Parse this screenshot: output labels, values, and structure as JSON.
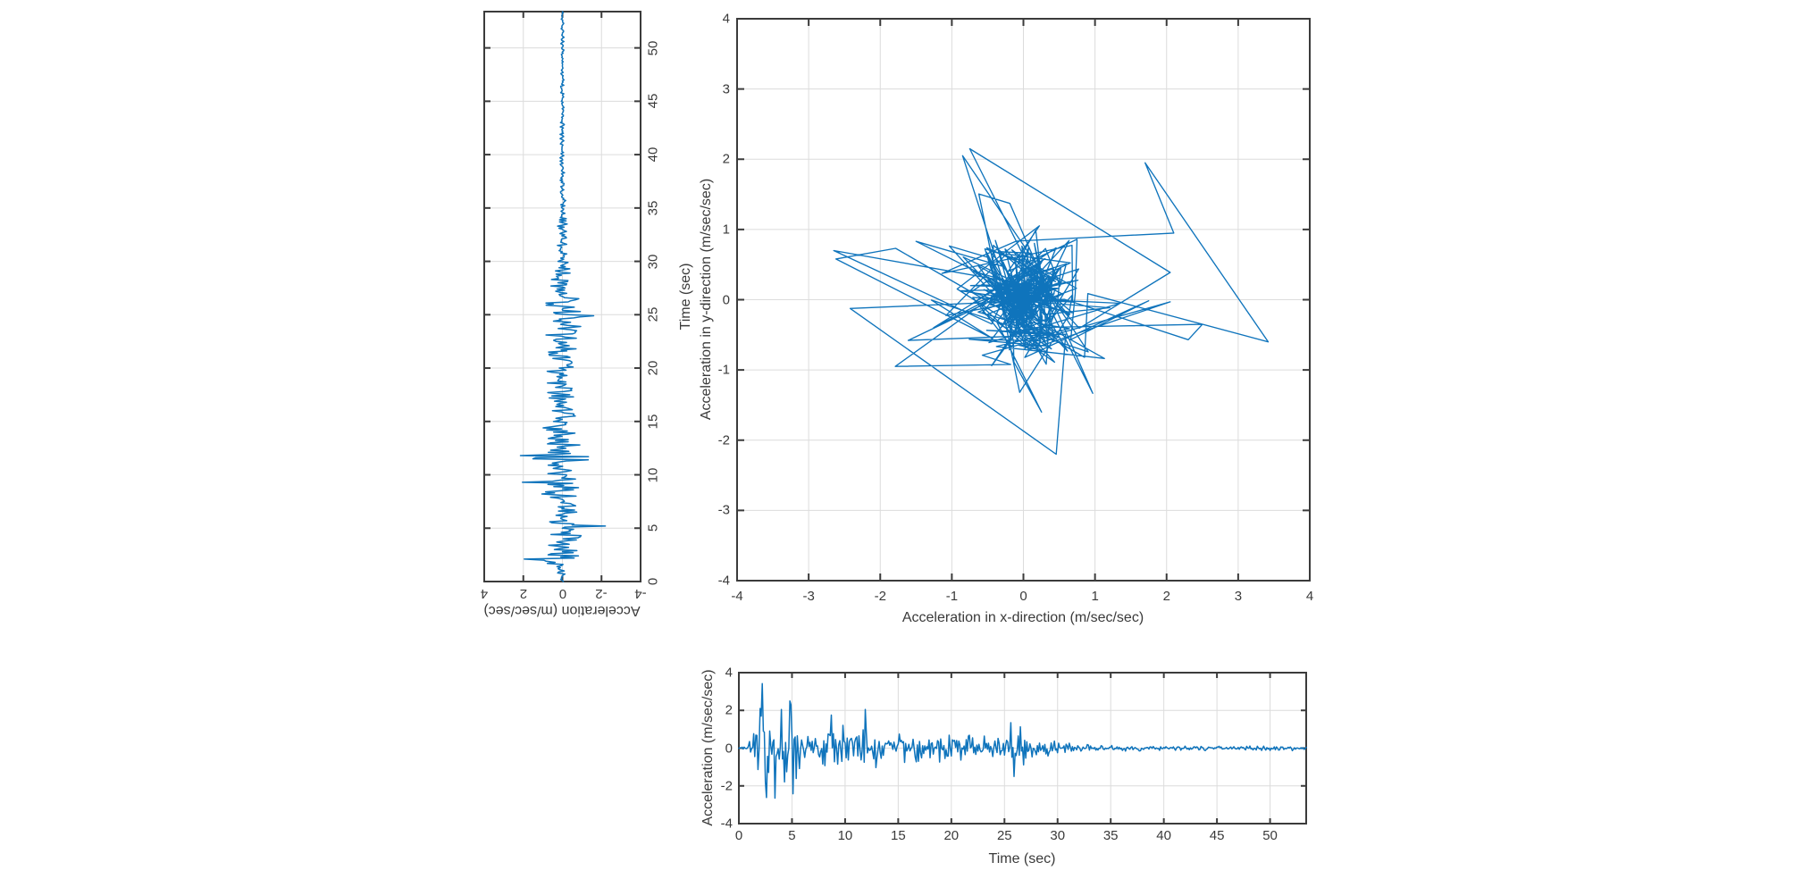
{
  "meta": {
    "background_color": "#ffffff",
    "line_color": "#0f74bc",
    "grid_color": "#dcdcdc",
    "axis_color": "#3b3b3b",
    "label_color": "#3a3a3a"
  },
  "chart_data": [
    {
      "id": "y_seismogram_rotated",
      "type": "line",
      "orientation": "rotated-90-ccw",
      "xlabel": "Acceleration (m/sec/sec)",
      "ylabel": "Time (sec)",
      "acc_ticks": [
        4,
        2,
        0,
        -2,
        -4
      ],
      "time_ticks": [
        0,
        5,
        10,
        15,
        20,
        25,
        30,
        35,
        40,
        45,
        50
      ],
      "acc_lim": [
        4,
        -4
      ],
      "time_lim": [
        0,
        53.4
      ],
      "grid_acc": [
        2,
        0,
        -2
      ],
      "grid_time": [
        5,
        10,
        15,
        20,
        25,
        30,
        35,
        40,
        45,
        50
      ],
      "series": {
        "name": "Acceleration in y-direction",
        "dt": 0.1,
        "tmax": 53.4,
        "envelope_t": [
          0,
          0.7,
          1.3,
          2.0,
          2.6,
          3.5,
          4.5,
          5.2,
          6,
          7,
          8,
          9,
          10,
          11,
          11.8,
          12.4,
          13.5,
          15,
          17,
          19,
          21,
          23,
          24.8,
          26,
          27.5,
          29,
          31,
          33,
          36,
          40,
          45,
          50,
          53.4
        ],
        "envelope_amp": [
          0.06,
          0.2,
          0.8,
          1.8,
          1.5,
          1.4,
          1.55,
          1.7,
          1.3,
          1.2,
          1.45,
          1.35,
          1.2,
          1.0,
          2.1,
          1.3,
          1.0,
          1.05,
          0.9,
          0.85,
          0.8,
          0.85,
          1.25,
          1.05,
          0.75,
          0.5,
          0.35,
          0.27,
          0.2,
          0.15,
          0.12,
          0.1,
          0.09
        ],
        "anchors": [
          [
            2.1,
            1.95
          ],
          [
            2.24,
            -0.6
          ],
          [
            3.4,
            0.7
          ],
          [
            5.2,
            -2.2
          ],
          [
            9.3,
            2.05
          ],
          [
            11.8,
            2.15
          ],
          [
            24.9,
            -1.6
          ]
        ]
      }
    },
    {
      "id": "xy_trajectory",
      "type": "line",
      "note": "parametric plot of x-acceleration vs y-acceleration over time",
      "xlabel": "Acceleration in x-direction (m/sec/sec)",
      "ylabel": "Acceleration in y-direction (m/sec/sec)",
      "xticks": [
        -4,
        -3,
        -2,
        -1,
        0,
        1,
        2,
        3,
        4
      ],
      "yticks": [
        4,
        3,
        2,
        1,
        0,
        -1,
        -2,
        -3,
        -4
      ],
      "xlim": [
        -4,
        4
      ],
      "ylim": [
        -4,
        4
      ],
      "grid": [
        -3,
        -2,
        -1,
        0,
        1,
        2,
        3
      ],
      "extent": {
        "xmin": -2.65,
        "xmax": 3.42,
        "ymin": -2.3,
        "ymax": 2.15
      }
    },
    {
      "id": "x_seismogram",
      "type": "line",
      "xlabel": "Time (sec)",
      "ylabel": "Acceleration (m/sec/sec)",
      "xticks": [
        0,
        5,
        10,
        15,
        20,
        25,
        30,
        35,
        40,
        45,
        50
      ],
      "yticks": [
        4,
        2,
        0,
        -2,
        -4
      ],
      "xlim": [
        0,
        53.4
      ],
      "ylim": [
        -4,
        4
      ],
      "grid_time": [
        5,
        10,
        15,
        20,
        25,
        30,
        35,
        40,
        45,
        50
      ],
      "grid_acc": [
        2,
        0,
        -2
      ],
      "series": {
        "name": "Acceleration in x-direction",
        "dt": 0.1,
        "tmax": 53.4,
        "envelope_t": [
          0,
          0.7,
          1.2,
          1.8,
          2.2,
          2.6,
          3.2,
          4.0,
          4.8,
          5.4,
          6.2,
          7.5,
          8.6,
          9.6,
          10.5,
          11.4,
          11.9,
          12.5,
          13.5,
          15,
          17,
          19,
          21,
          23,
          24.5,
          25.5,
          26.3,
          27.2,
          28.5,
          30,
          32,
          34,
          37,
          40,
          44,
          48,
          51,
          53.4
        ],
        "envelope_amp": [
          0.06,
          0.15,
          0.8,
          1.9,
          3.3,
          2.5,
          1.5,
          1.9,
          2.5,
          1.9,
          1.0,
          0.75,
          1.7,
          1.4,
          1.0,
          1.1,
          2.0,
          1.25,
          0.95,
          1.05,
          0.85,
          0.8,
          0.75,
          0.7,
          1.15,
          1.35,
          1.3,
          0.7,
          0.5,
          0.38,
          0.28,
          0.2,
          0.16,
          0.14,
          0.12,
          0.11,
          0.16,
          0.1
        ],
        "anchors": [
          [
            2.0,
            2.1
          ],
          [
            2.24,
            3.42
          ],
          [
            2.56,
            -2.62
          ],
          [
            3.4,
            -2.65
          ],
          [
            4.0,
            2.05
          ],
          [
            4.84,
            2.5
          ],
          [
            5.08,
            -2.42
          ],
          [
            8.7,
            1.75
          ],
          [
            9.3,
            -0.85
          ],
          [
            11.8,
            -0.75
          ],
          [
            11.92,
            2.05
          ],
          [
            25.6,
            1.35
          ],
          [
            25.9,
            -1.5
          ]
        ]
      }
    }
  ]
}
